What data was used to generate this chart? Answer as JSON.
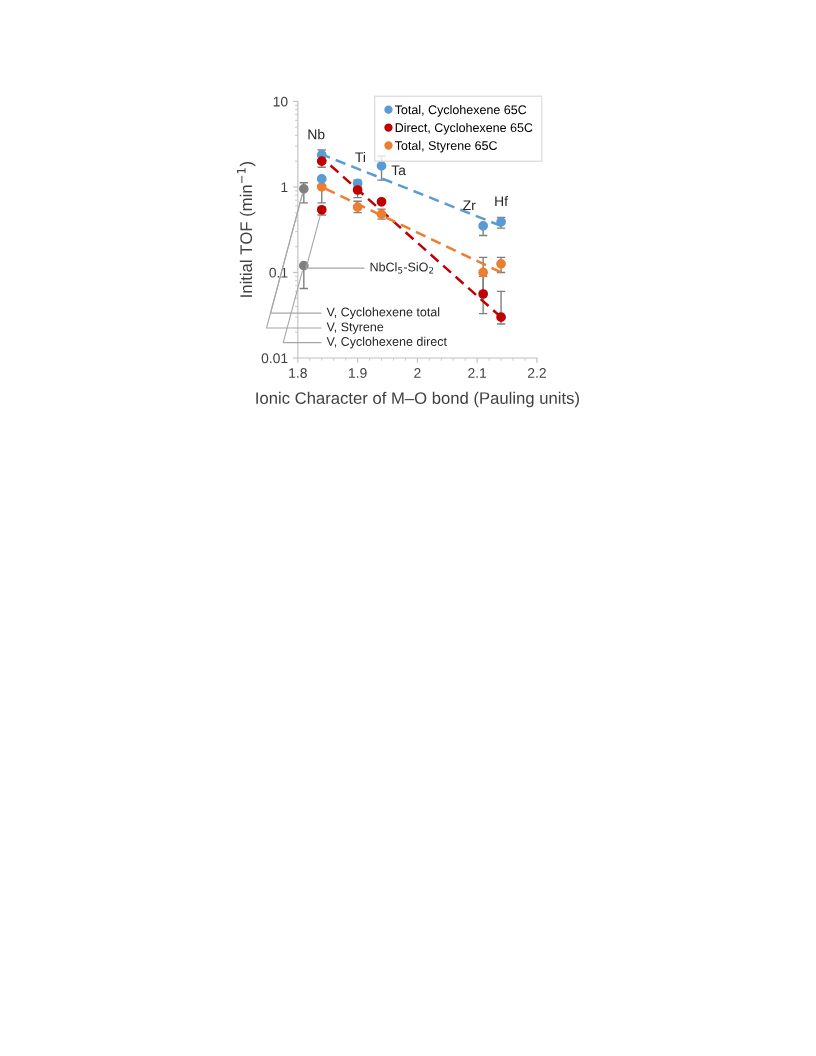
{
  "chart_data": {
    "type": "scatter",
    "xlabel": "Ionic Character of M–O bond (Pauling units)",
    "ylabel": "Initial TOF (min$^{−1}$)",
    "log": "y",
    "xlim": [
      1.8,
      2.2
    ],
    "xticks": [
      1.8,
      1.9,
      {
        "value": 2.0,
        "label": "2"
      },
      2.1,
      2.2
    ],
    "ylim": [
      0.01,
      10
    ],
    "yticks": [
      0.01,
      0.1,
      1,
      10
    ],
    "grid": false,
    "legend": "top right",
    "marker": "circle",
    "series": [
      {
        "name": "Total, Cyclohexene 65C",
        "color": "#5b9bd5",
        "x": [
          1.84,
          1.9,
          1.94,
          2.11,
          2.14
        ],
        "values": [
          2.36,
          1.1,
          1.76,
          0.35,
          0.39
        ],
        "errors": [
          [
            2.1,
            2.7
          ],
          [
            1.0,
            1.2
          ],
          [
            1.2,
            2.3
          ],
          [
            0.27,
            0.37
          ],
          [
            0.33,
            0.44
          ]
        ]
      },
      {
        "name": "Direct, Cyclohexene 65C",
        "color": "#c00000",
        "x": [
          1.84,
          1.9,
          1.94,
          2.11,
          2.14
        ],
        "values": [
          2.0,
          0.92,
          0.67,
          0.056,
          0.03
        ],
        "errors": [
          [
            1.7,
            2.3
          ],
          [
            0.75,
            1.05
          ],
          null,
          [
            0.033,
            0.09
          ],
          [
            0.025,
            0.06
          ]
        ]
      },
      {
        "name": "Total, Styrene 65C",
        "color": "#ed7d31",
        "x": [
          1.84,
          1.9,
          1.94,
          2.11,
          2.14
        ],
        "values": [
          1.0,
          0.58,
          0.48,
          0.1,
          0.126
        ],
        "errors": [
          [
            0.65,
            1.2
          ],
          [
            0.5,
            0.68
          ],
          [
            0.42,
            0.55
          ],
          [
            0.06,
            0.15
          ],
          [
            0.1,
            0.15
          ]
        ]
      },
      {
        "color": "#5b9bd5",
        "x": [
          1.84
        ],
        "values": [
          1.24
        ],
        "errors": [
          [
            1.05,
            1.3
          ]
        ]
      },
      {
        "color": "#c00000",
        "x": [
          1.84
        ],
        "values": [
          0.54
        ],
        "errors": [
          [
            0.47,
            0.58
          ]
        ]
      },
      {
        "color": "#808080",
        "x": [
          1.81,
          1.81
        ],
        "values": [
          0.95,
          0.12
        ],
        "errors": [
          [
            0.65,
            1.12
          ],
          [
            0.065,
            0.12
          ]
        ]
      },
      {
        "type": "line",
        "marker": "none",
        "line_style": "dashed",
        "color": "#5b9bd5",
        "x": [
          1.84,
          2.14
        ],
        "values": [
          2.4,
          0.35
        ]
      },
      {
        "type": "line",
        "marker": "none",
        "line_style": "dashed",
        "color": "#c00000",
        "x": [
          1.84,
          2.14
        ],
        "values": [
          2.2,
          0.03
        ]
      },
      {
        "type": "line",
        "marker": "none",
        "line_style": "dashed",
        "color": "#ed7d31",
        "x": [
          1.84,
          2.14
        ],
        "values": [
          1.0,
          0.1
        ]
      }
    ],
    "annotations": [
      {
        "text": "Nb",
        "x": 1.84,
        "y": 2.36
      },
      {
        "text": "Ti",
        "x": 1.9,
        "y": 1.1
      },
      {
        "text": "Ta",
        "x": 1.94,
        "y": 1.76
      },
      {
        "text": "Zr",
        "x": 2.11,
        "y": 0.35
      },
      {
        "text": "Hf",
        "x": 2.14,
        "y": 0.39
      },
      {
        "text": "NbCl$_{5}$-SiO$_{2}$",
        "x": 1.84,
        "y": 0.54
      },
      {
        "text": "V, Cyclohexene total",
        "x": 1.81,
        "y": 0.95
      },
      {
        "text": "V, Styrene",
        "x": 1.81,
        "y": 0.95
      },
      {
        "text": "V, Cyclohexene direct",
        "x": 1.81,
        "y": 0.12
      }
    ]
  }
}
